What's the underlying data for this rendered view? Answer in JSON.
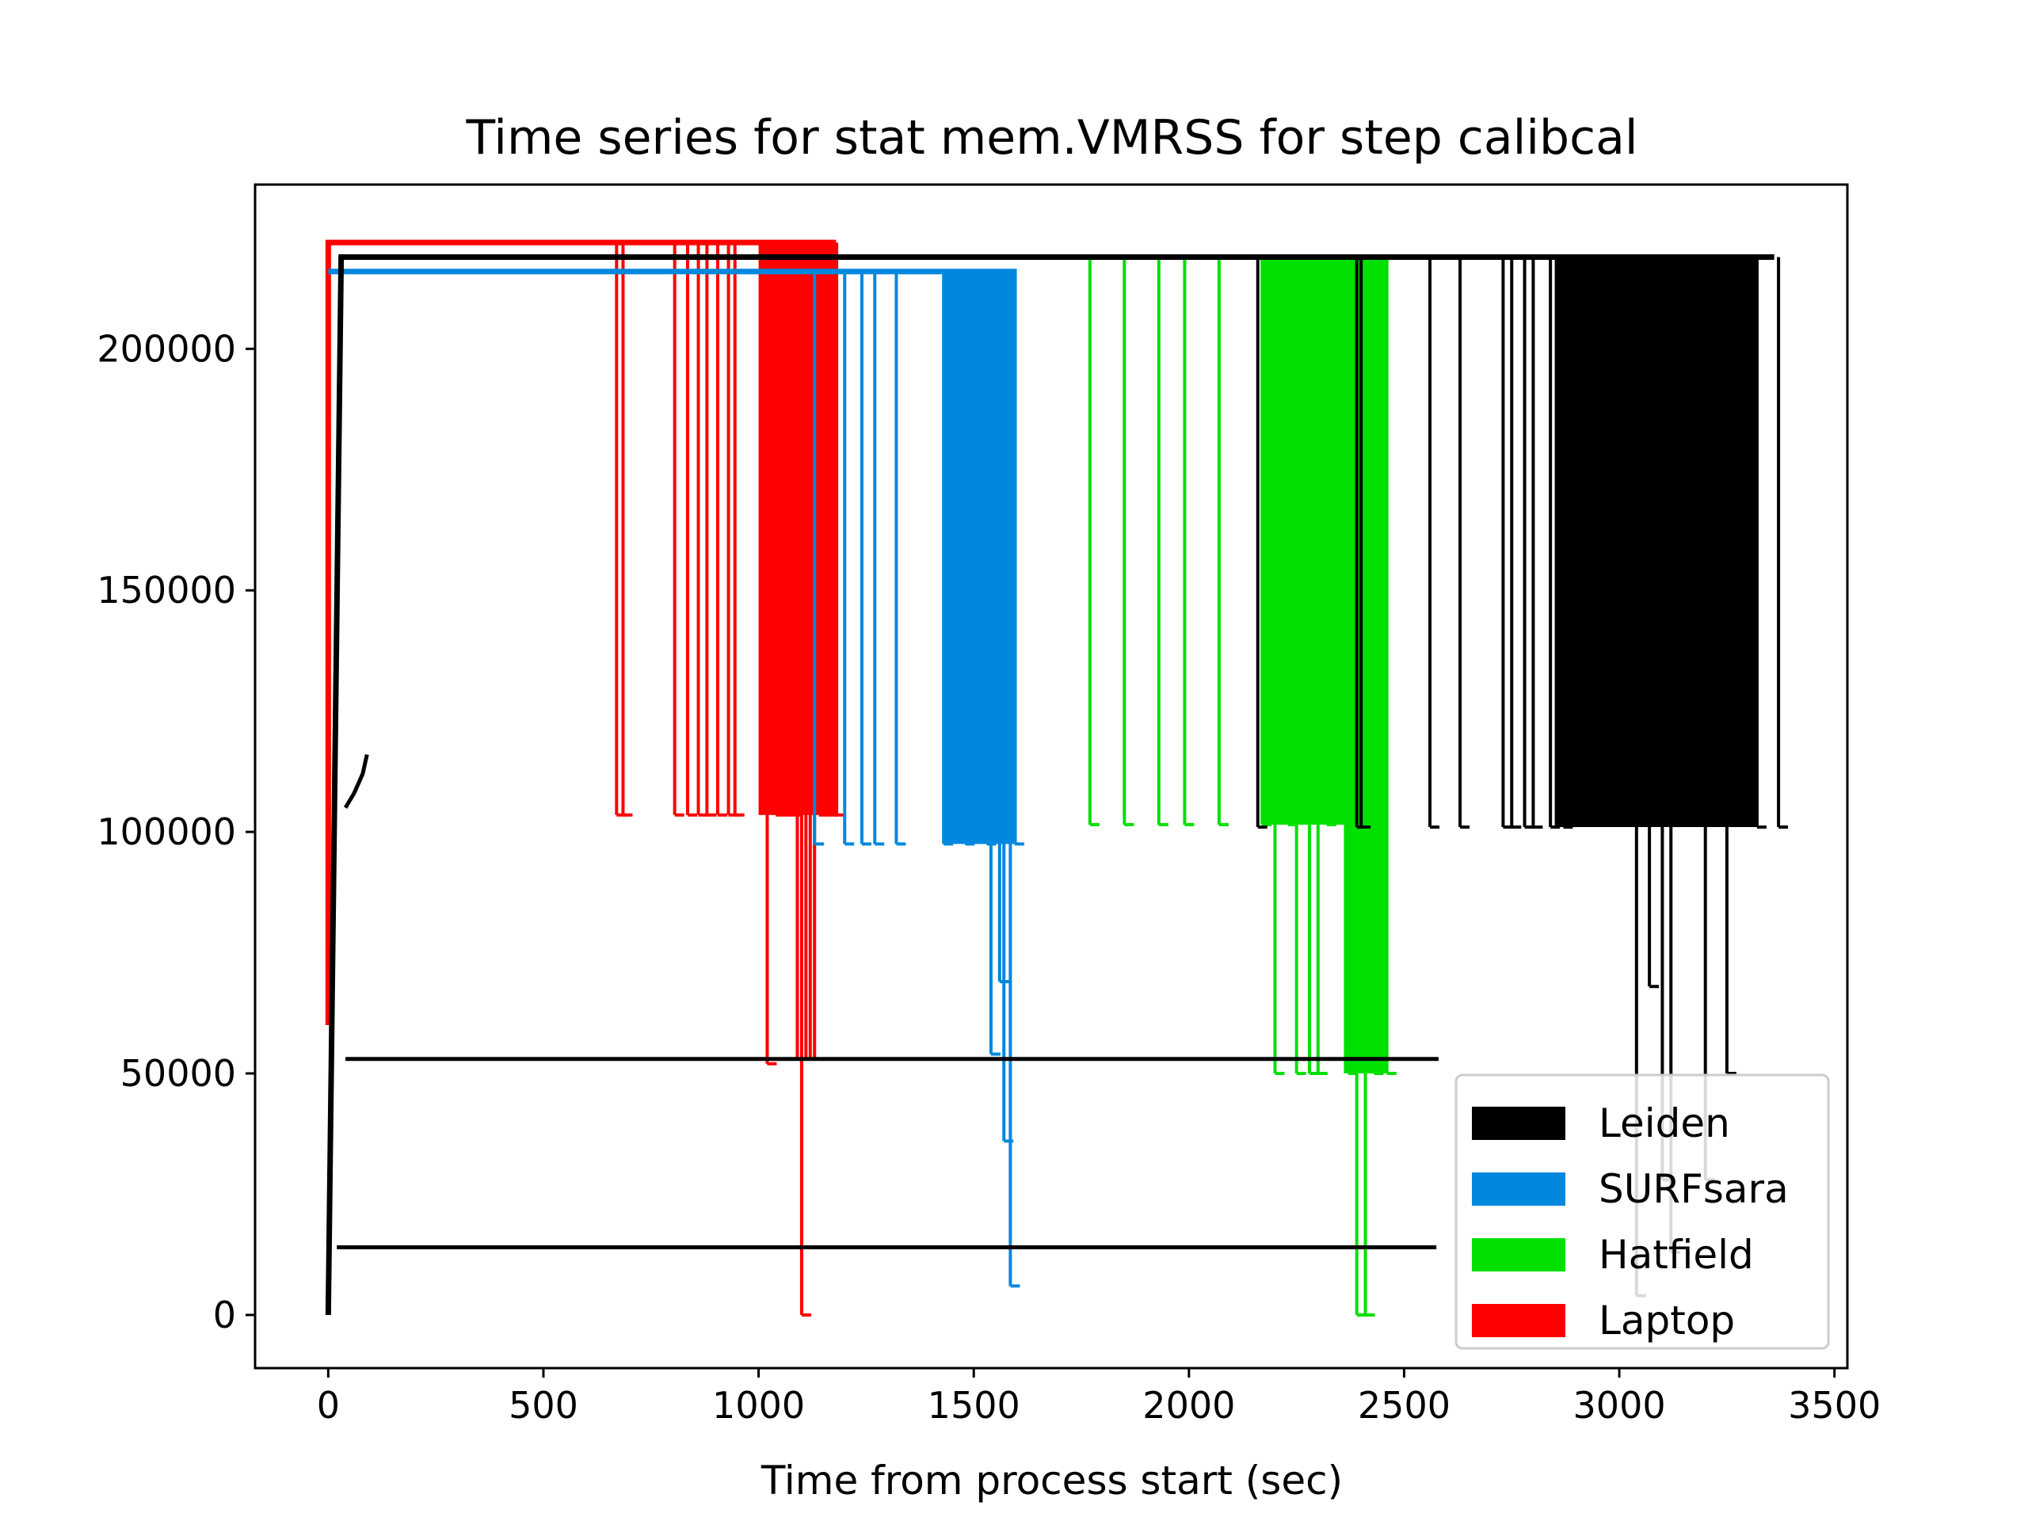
{
  "chart_data": {
    "type": "line",
    "title": "Time series for stat mem.VMRSS for step calibcal",
    "xlabel": "Time from process start (sec)",
    "ylabel": "",
    "xlim": [
      -170,
      3530
    ],
    "ylim": [
      -11000,
      234000
    ],
    "xticks": [
      0,
      500,
      1000,
      1500,
      2000,
      2500,
      3000,
      3500
    ],
    "yticks": [
      0,
      50000,
      100000,
      150000,
      200000
    ],
    "grid": false,
    "legend_position": "lower-right",
    "legend": [
      {
        "name": "Leiden",
        "color": "#000000"
      },
      {
        "name": "SURFsara",
        "color": "#0088dd"
      },
      {
        "name": "Hatfield",
        "color": "#00e000"
      },
      {
        "name": "Laptop",
        "color": "#ff0000"
      }
    ],
    "series": [
      {
        "name": "Laptop",
        "color": "#ff0000",
        "baseline": [
          [
            0,
            60000
          ],
          [
            0,
            222000
          ],
          [
            1180,
            222000
          ]
        ],
        "top": 222000,
        "dips": [
          [
            670,
            103500
          ],
          [
            685,
            103500
          ],
          [
            805,
            103500
          ],
          [
            835,
            103500
          ],
          [
            860,
            103500
          ],
          [
            880,
            103500
          ],
          [
            905,
            103500
          ],
          [
            930,
            103500
          ],
          [
            945,
            103500
          ],
          [
            1020,
            52000
          ],
          [
            1040,
            103500
          ],
          [
            1060,
            103500
          ],
          [
            1080,
            103500
          ],
          [
            1090,
            53000
          ],
          [
            1100,
            0
          ],
          [
            1110,
            53000
          ],
          [
            1120,
            53000
          ],
          [
            1130,
            53000
          ],
          [
            1140,
            103500
          ],
          [
            1160,
            103500
          ],
          [
            1175,
            103500
          ]
        ],
        "dense_blocks": [
          [
            1000,
            1185,
            103500
          ]
        ]
      },
      {
        "name": "SURFsara",
        "color": "#0088dd",
        "baseline": [
          [
            0,
            216000
          ],
          [
            1600,
            216000
          ]
        ],
        "top": 216000,
        "dips": [
          [
            1130,
            97500
          ],
          [
            1200,
            97500
          ],
          [
            1240,
            97500
          ],
          [
            1270,
            97500
          ],
          [
            1320,
            97500
          ],
          [
            1430,
            97500
          ],
          [
            1480,
            97500
          ],
          [
            1530,
            97500
          ],
          [
            1540,
            54000
          ],
          [
            1560,
            69000
          ],
          [
            1570,
            36000
          ],
          [
            1585,
            6000
          ],
          [
            1595,
            97500
          ]
        ],
        "dense_blocks": [
          [
            1430,
            1600,
            97500
          ]
        ]
      },
      {
        "name": "Hatfield",
        "color": "#00e000",
        "baseline": [
          [
            1770,
            219000
          ],
          [
            2460,
            219000
          ]
        ],
        "top": 219000,
        "dips": [
          [
            1770,
            101500
          ],
          [
            1850,
            101500
          ],
          [
            1930,
            101500
          ],
          [
            1990,
            101500
          ],
          [
            2070,
            101500
          ],
          [
            2170,
            101500
          ],
          [
            2200,
            50000
          ],
          [
            2230,
            101500
          ],
          [
            2250,
            50000
          ],
          [
            2280,
            50000
          ],
          [
            2300,
            50000
          ],
          [
            2320,
            101500
          ],
          [
            2370,
            50000
          ],
          [
            2390,
            0
          ],
          [
            2410,
            0
          ],
          [
            2430,
            50000
          ],
          [
            2460,
            50000
          ]
        ],
        "dense_blocks": [
          [
            2170,
            2460,
            101500
          ],
          [
            2360,
            2460,
            50000
          ]
        ]
      },
      {
        "name": "Leiden",
        "color": "#000000",
        "baseline": [
          [
            0,
            0
          ],
          [
            30,
            219000
          ],
          [
            3360,
            219000
          ]
        ],
        "top": 219000,
        "dips": [
          [
            2160,
            101000
          ],
          [
            2390,
            101000
          ],
          [
            2400,
            101000
          ],
          [
            2560,
            101000
          ],
          [
            2630,
            101000
          ],
          [
            2730,
            101000
          ],
          [
            2750,
            101000
          ],
          [
            2780,
            101000
          ],
          [
            2800,
            101000
          ],
          [
            2840,
            101000
          ],
          [
            2870,
            101000
          ],
          [
            3040,
            4000
          ],
          [
            3070,
            68000
          ],
          [
            3100,
            28000
          ],
          [
            3120,
            13000
          ],
          [
            3200,
            28000
          ],
          [
            3250,
            50000
          ],
          [
            3320,
            101000
          ],
          [
            3370,
            101000
          ]
        ],
        "dense_blocks": [
          [
            2850,
            3320,
            101000
          ]
        ],
        "extra_lines": [
          [
            [
              40,
              53000
            ],
            [
              2580,
              53000
            ]
          ],
          [
            [
              20,
              14000
            ],
            [
              2575,
              14000
            ]
          ],
          [
            [
              40,
              105000
            ],
            [
              60,
              108000
            ],
            [
              80,
              112000
            ],
            [
              90,
              116000
            ]
          ]
        ]
      }
    ]
  }
}
